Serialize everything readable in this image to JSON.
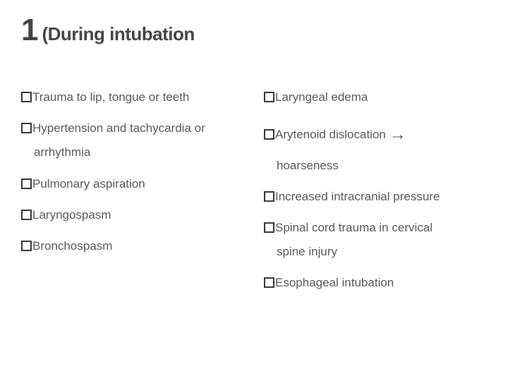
{
  "title": {
    "number": "1",
    "text": "(During intubation"
  },
  "left": [
    {
      "label": "Trauma to lip, tongue or teeth"
    },
    {
      "label": "Hypertension and tachycardia or",
      "cont": "arrhythmia"
    },
    {
      "label": "Pulmonary aspiration"
    },
    {
      "label": "Laryngospasm"
    },
    {
      "label": "Bronchospasm"
    }
  ],
  "right": [
    {
      "label": "Laryngeal edema"
    },
    {
      "label": "Arytenoid dislocation ",
      "arrow": "→",
      "cont": "hoarseness"
    },
    {
      "label": "Increased intracranial pressure"
    },
    {
      "label": "Spinal cord trauma in cervical",
      "cont": "spine injury"
    },
    {
      "label": "Esophageal intubation"
    }
  ],
  "colors": {
    "title": "#444444",
    "text": "#555555",
    "box_border": "#333333",
    "background": "#ffffff"
  },
  "typography": {
    "title_number_size_pt": 33,
    "title_text_size_pt": 20,
    "body_size_pt": 13,
    "line_height": 2.6
  }
}
